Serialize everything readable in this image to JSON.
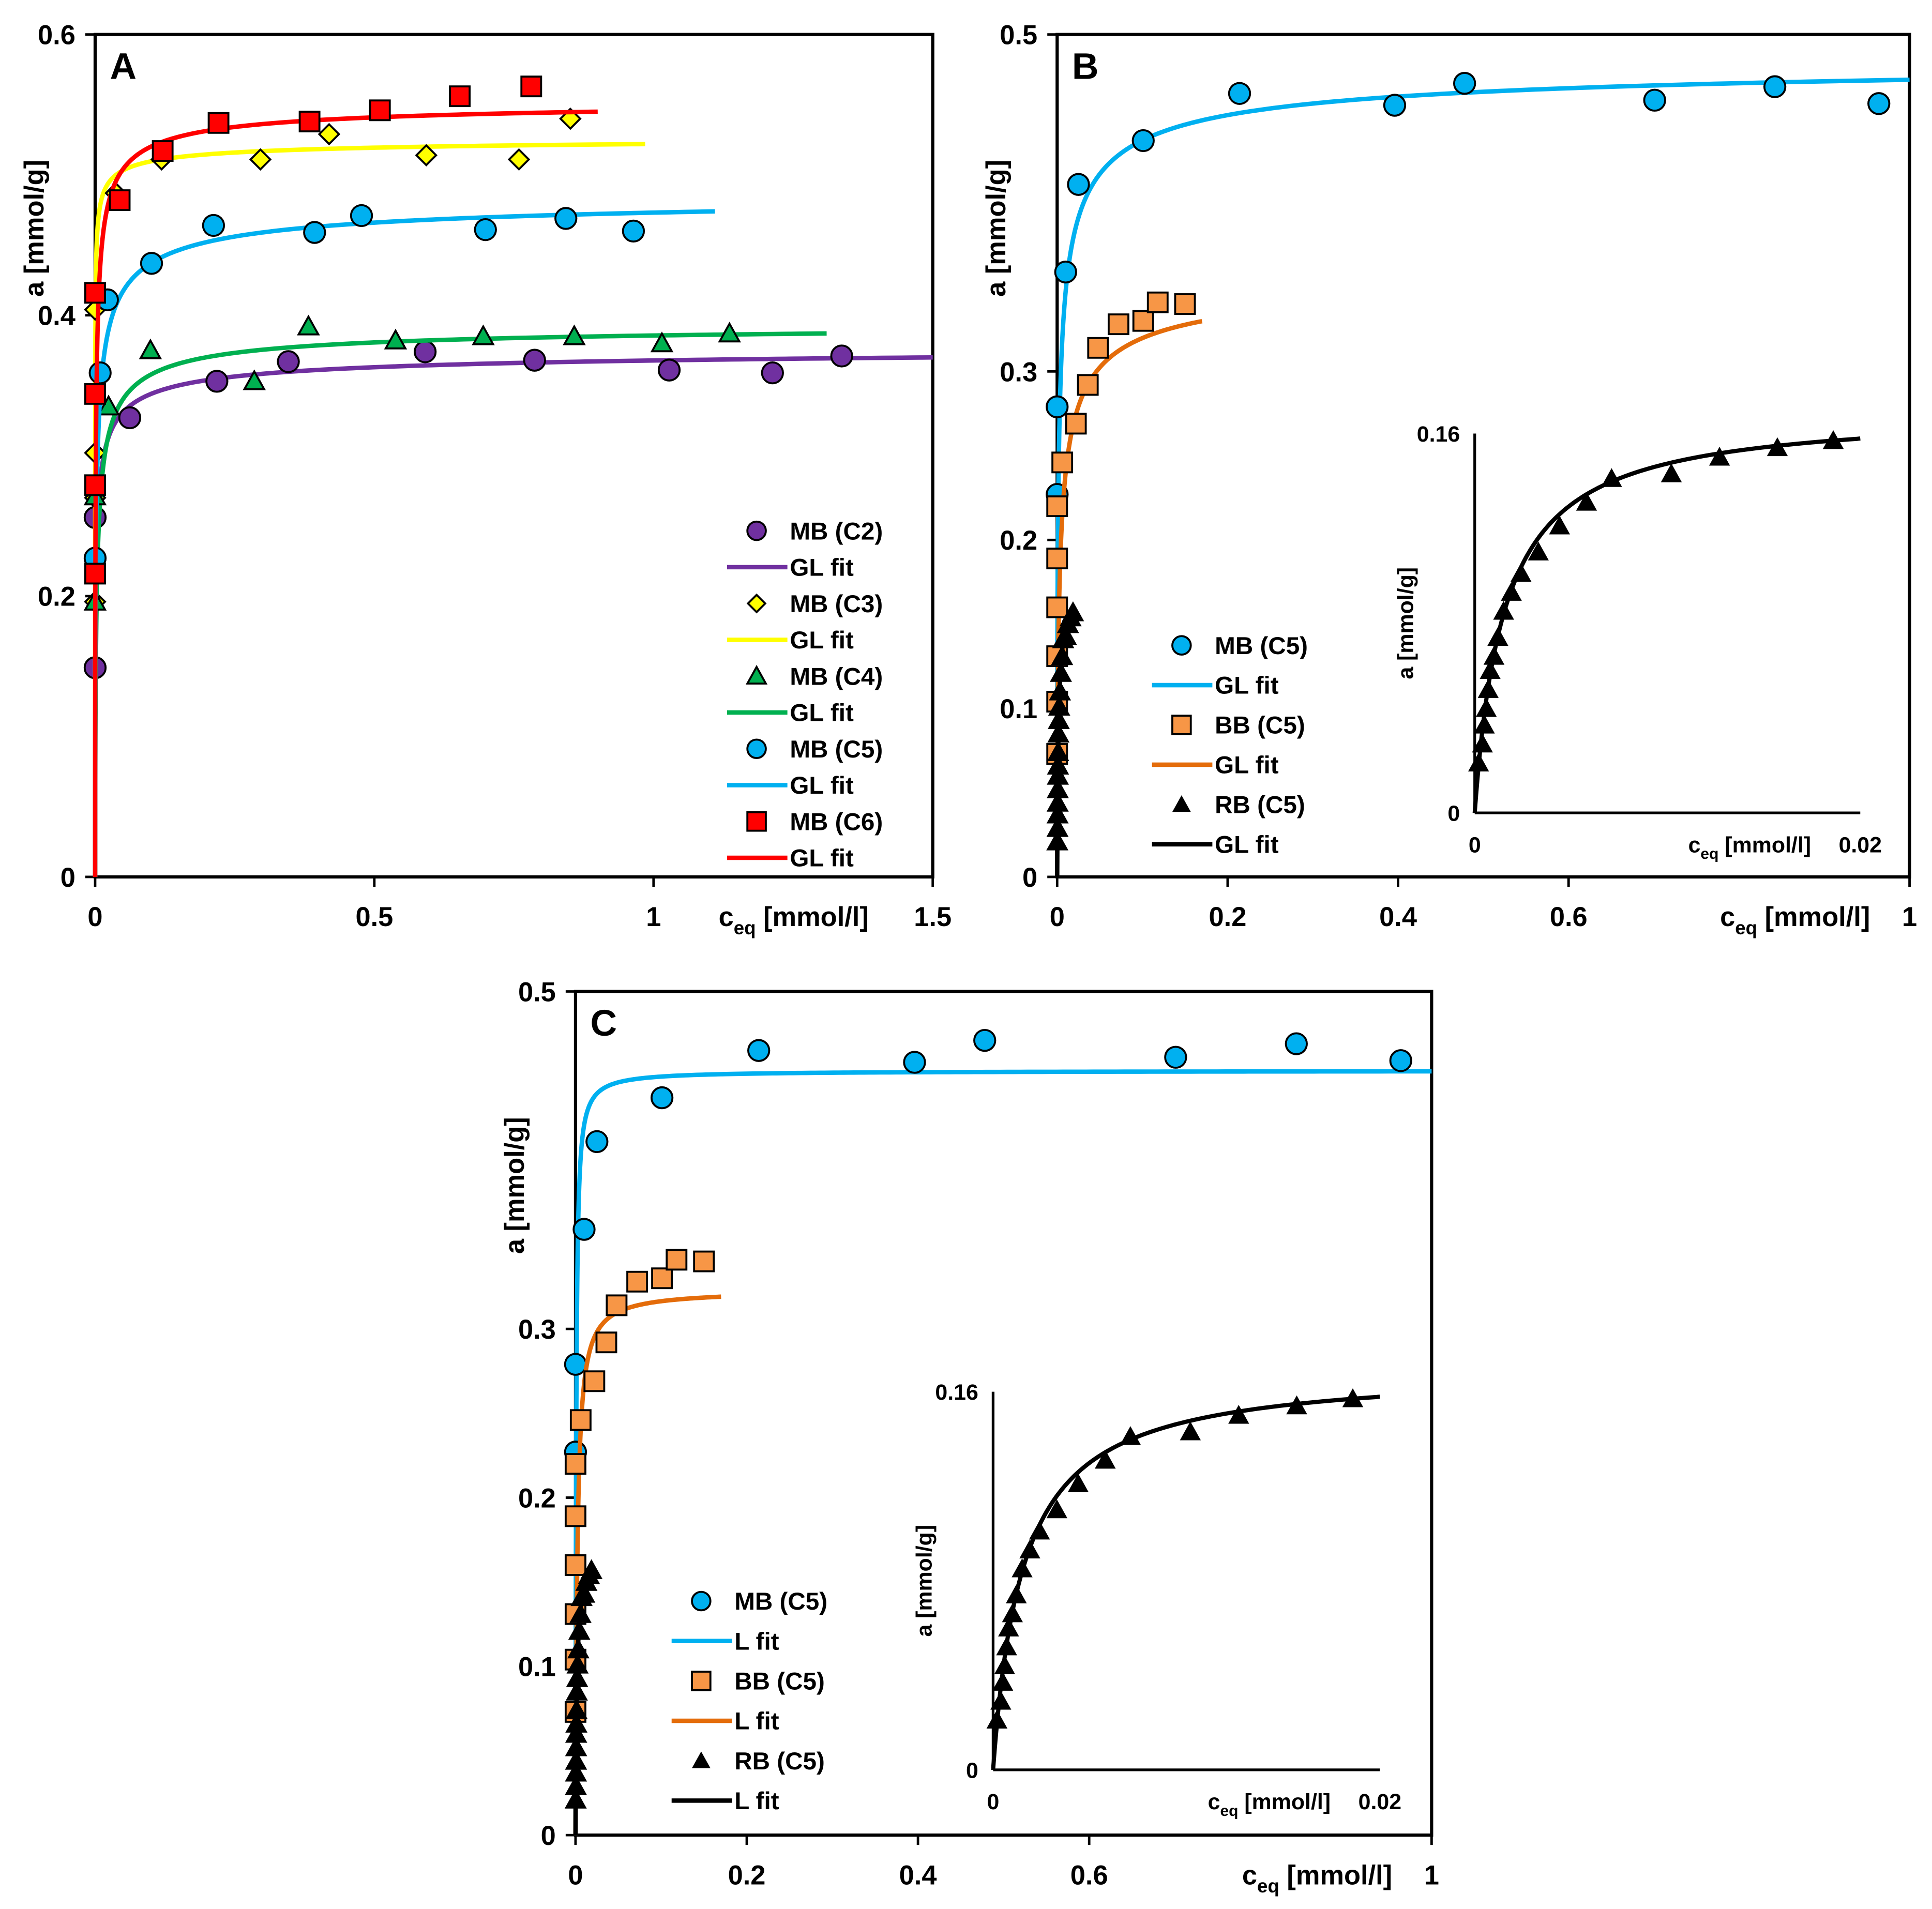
{
  "chart_data": [
    {
      "id": "A",
      "type": "scatter",
      "panel_label": "A",
      "xlabel_main": "c",
      "xlabel_sub": "eq",
      "xlabel_unit": " [mmol/l]",
      "ylabel": "a [mmol/g]",
      "xlim": [
        0,
        1.5
      ],
      "ylim": [
        0,
        0.6
      ],
      "xticks": [
        0,
        0.5,
        1,
        1.5
      ],
      "xtick_labels": [
        "0",
        "0.5",
        "1",
        "1.5"
      ],
      "yticks": [
        0,
        0.2,
        0.4,
        0.6
      ],
      "ytick_labels": [
        "0",
        "0.2",
        "0.4",
        "0.6"
      ],
      "legend_placement": "bottom-right",
      "series": [
        {
          "name": "MB (C2)",
          "marker": "circle",
          "color": "#7030A0",
          "points": [
            [
              0,
              0.149
            ],
            [
              0,
              0.256
            ],
            [
              0.062,
              0.327
            ],
            [
              0.218,
              0.353
            ],
            [
              0.346,
              0.367
            ],
            [
              0.591,
              0.374
            ],
            [
              0.787,
              0.368
            ],
            [
              1.028,
              0.361
            ],
            [
              1.213,
              0.359
            ],
            [
              1.337,
              0.371
            ]
          ],
          "fit": {
            "label": "GL fit",
            "am": 0.38,
            "K": 913,
            "n": 0.5,
            "xmax": 1.5
          }
        },
        {
          "name": "MB (C3)",
          "marker": "diamond",
          "color": "#FFFF00",
          "points": [
            [
              0,
              0.196
            ],
            [
              0,
              0.27
            ],
            [
              0,
              0.302
            ],
            [
              0,
              0.404
            ],
            [
              0.037,
              0.487
            ],
            [
              0.119,
              0.511
            ],
            [
              0.296,
              0.511
            ],
            [
              0.419,
              0.529
            ],
            [
              0.593,
              0.514
            ],
            [
              0.759,
              0.511
            ],
            [
              0.851,
              0.54
            ]
          ],
          "fit": {
            "label": "GL fit",
            "am": 0.53,
            "K": 23500,
            "n": 0.415,
            "xmax": 0.985
          }
        },
        {
          "name": "MB (C4)",
          "marker": "triangle",
          "color": "#00B050",
          "points": [
            [
              0,
              0.196
            ],
            [
              0,
              0.271
            ],
            [
              0.024,
              0.335
            ],
            [
              0.099,
              0.375
            ],
            [
              0.285,
              0.353
            ],
            [
              0.382,
              0.392
            ],
            [
              0.538,
              0.382
            ],
            [
              0.695,
              0.385
            ],
            [
              0.858,
              0.385
            ],
            [
              1.015,
              0.38
            ],
            [
              1.136,
              0.387
            ]
          ],
          "fit": {
            "label": "GL fit",
            "am": 0.395,
            "K": 364,
            "n": 0.63,
            "xmax": 1.31
          }
        },
        {
          "name": "MB (C5)",
          "marker": "circle",
          "color": "#00B0F0",
          "points": [
            [
              0,
              0.227
            ],
            [
              0.009,
              0.359
            ],
            [
              0.022,
              0.411
            ],
            [
              0.101,
              0.437
            ],
            [
              0.212,
              0.464
            ],
            [
              0.393,
              0.459
            ],
            [
              0.477,
              0.471
            ],
            [
              0.699,
              0.461
            ],
            [
              0.843,
              0.469
            ],
            [
              0.964,
              0.46
            ]
          ],
          "fit": {
            "label": "GL fit",
            "am": 0.49,
            "K": 539,
            "n": 0.53,
            "xmax": 1.11
          }
        },
        {
          "name": "MB (C6)",
          "marker": "square",
          "color": "#FF0000",
          "points": [
            [
              0,
              0.216
            ],
            [
              0,
              0.279
            ],
            [
              0,
              0.344
            ],
            [
              0,
              0.416
            ],
            [
              0.044,
              0.482
            ],
            [
              0.121,
              0.517
            ],
            [
              0.221,
              0.537
            ],
            [
              0.384,
              0.538
            ],
            [
              0.51,
              0.546
            ],
            [
              0.653,
              0.556
            ],
            [
              0.781,
              0.563
            ]
          ],
          "fit": {
            "label": "GL fit",
            "am": 0.555,
            "K": 976,
            "n": 0.59,
            "xmax": 0.9
          }
        }
      ]
    },
    {
      "id": "B",
      "type": "scatter",
      "panel_label": "B",
      "xlabel_main": "c",
      "xlabel_sub": "eq",
      "xlabel_unit": " [mmol/l]",
      "ylabel": "a [mmol/g]",
      "xlim": [
        0,
        1
      ],
      "ylim": [
        0,
        0.5
      ],
      "xticks": [
        0,
        0.2,
        0.4,
        0.6,
        1
      ],
      "xtick_labels": [
        "0",
        "0.2",
        "0.4",
        "0.6",
        "1"
      ],
      "yticks": [
        0,
        0.1,
        0.2,
        0.3,
        0.5
      ],
      "ytick_labels": [
        "0",
        "0.1",
        "0.2",
        "0.3",
        "0.5"
      ],
      "legend_placement": "bottom-left",
      "series": [
        {
          "name": "MB (C5)",
          "marker": "circle",
          "color": "#00B0F0",
          "points": [
            [
              0,
              0.227
            ],
            [
              0,
              0.279
            ],
            [
              0.01,
              0.359
            ],
            [
              0.025,
              0.411
            ],
            [
              0.101,
              0.437
            ],
            [
              0.214,
              0.465
            ],
            [
              0.396,
              0.458
            ],
            [
              0.478,
              0.471
            ],
            [
              0.701,
              0.461
            ],
            [
              0.842,
              0.469
            ],
            [
              0.964,
              0.459
            ]
          ],
          "fit": {
            "label": "GL fit",
            "am": 0.49,
            "K": 539,
            "n": 0.53,
            "xmax": 1.0
          }
        },
        {
          "name": "BB (C5)",
          "marker": "square",
          "color": "#F79646",
          "line_color": "#E46C0A",
          "points": [
            [
              0,
              0.073
            ],
            [
              0,
              0.104
            ],
            [
              0,
              0.131
            ],
            [
              0,
              0.16
            ],
            [
              0,
              0.189
            ],
            [
              0,
              0.22
            ],
            [
              0.006,
              0.246
            ],
            [
              0.022,
              0.269
            ],
            [
              0.036,
              0.292
            ],
            [
              0.048,
              0.314
            ],
            [
              0.072,
              0.328
            ],
            [
              0.101,
              0.33
            ],
            [
              0.118,
              0.341
            ],
            [
              0.15,
              0.34
            ]
          ],
          "fit": {
            "label": "GL fit",
            "am": 0.36,
            "K": 317,
            "n": 0.6,
            "xmax": 0.17
          }
        },
        {
          "name": "RB (C5)",
          "marker": "triangle-solid",
          "color": "#000000",
          "points": [
            [
              0.0002,
              0.021
            ],
            [
              0.0004,
              0.029
            ],
            [
              0.0005,
              0.037
            ],
            [
              0.0006,
              0.044
            ],
            [
              0.0007,
              0.052
            ],
            [
              0.0008,
              0.06
            ],
            [
              0.001,
              0.066
            ],
            [
              0.0012,
              0.074
            ],
            [
              0.0015,
              0.085
            ],
            [
              0.0019,
              0.093
            ],
            [
              0.0024,
              0.101
            ],
            [
              0.0033,
              0.11
            ],
            [
              0.0044,
              0.121
            ],
            [
              0.0058,
              0.131
            ],
            [
              0.0071,
              0.141
            ],
            [
              0.0102,
              0.143
            ],
            [
              0.0127,
              0.15
            ],
            [
              0.0157,
              0.154
            ],
            [
              0.0186,
              0.157
            ]
          ],
          "fit": {
            "label": "GL fit",
            "am": 0.17,
            "K": 650,
            "n": 1,
            "xmax": 0.0201
          }
        }
      ],
      "inset": {
        "series_index": 2,
        "xlim": [
          0,
          0.02
        ],
        "ylim": [
          0,
          0.16
        ],
        "xticks": [
          0,
          0.02
        ],
        "xtick_labels": [
          "0",
          "0.02"
        ],
        "yticks": [
          0,
          0.16
        ],
        "ytick_labels": [
          "0",
          "0.16"
        ],
        "xlabel_main": "c",
        "xlabel_sub": "eq",
        "xlabel_unit": " [mmol/l]",
        "ylabel": "a [mmol/g]"
      }
    },
    {
      "id": "C",
      "type": "scatter",
      "panel_label": "C",
      "xlabel_main": "c",
      "xlabel_sub": "eq",
      "xlabel_unit": " [mmol/l]",
      "ylabel": "a [mmol/g]",
      "xlim": [
        0,
        1
      ],
      "ylim": [
        0,
        0.5
      ],
      "xticks": [
        0,
        0.2,
        0.4,
        0.6,
        1
      ],
      "xtick_labels": [
        "0",
        "0.2",
        "0.4",
        "0.6",
        "1"
      ],
      "yticks": [
        0,
        0.1,
        0.2,
        0.3,
        0.5
      ],
      "ytick_labels": [
        "0",
        "0.1",
        "0.2",
        "0.3",
        "0.5"
      ],
      "legend_placement": "bottom-left",
      "series": [
        {
          "name": "MB (C5)",
          "marker": "circle",
          "color": "#00B0F0",
          "points": [
            [
              0,
              0.227
            ],
            [
              0,
              0.279
            ],
            [
              0.01,
              0.359
            ],
            [
              0.025,
              0.411
            ],
            [
              0.101,
              0.437
            ],
            [
              0.214,
              0.465
            ],
            [
              0.396,
              0.458
            ],
            [
              0.478,
              0.471
            ],
            [
              0.701,
              0.461
            ],
            [
              0.842,
              0.469
            ],
            [
              0.964,
              0.459
            ]
          ],
          "fit": {
            "label": "L fit",
            "am": 0.453,
            "K": 1300,
            "n": 1,
            "xmax": 1.0
          }
        },
        {
          "name": "BB (C5)",
          "marker": "square",
          "color": "#F79646",
          "line_color": "#E46C0A",
          "points": [
            [
              0,
              0.073
            ],
            [
              0,
              0.104
            ],
            [
              0,
              0.131
            ],
            [
              0,
              0.16
            ],
            [
              0,
              0.189
            ],
            [
              0,
              0.22
            ],
            [
              0.006,
              0.246
            ],
            [
              0.022,
              0.269
            ],
            [
              0.036,
              0.292
            ],
            [
              0.048,
              0.314
            ],
            [
              0.072,
              0.328
            ],
            [
              0.101,
              0.33
            ],
            [
              0.118,
              0.341
            ],
            [
              0.15,
              0.34
            ]
          ],
          "fit": {
            "label": "L fit",
            "am": 0.323,
            "K": 480,
            "n": 1,
            "xmax": 0.17
          }
        },
        {
          "name": "RB (C5)",
          "marker": "triangle-solid",
          "color": "#000000",
          "points": [
            [
              0.0002,
              0.021
            ],
            [
              0.0004,
              0.029
            ],
            [
              0.0005,
              0.037
            ],
            [
              0.0006,
              0.044
            ],
            [
              0.0007,
              0.052
            ],
            [
              0.0008,
              0.06
            ],
            [
              0.001,
              0.066
            ],
            [
              0.0012,
              0.074
            ],
            [
              0.0015,
              0.085
            ],
            [
              0.0019,
              0.093
            ],
            [
              0.0024,
              0.101
            ],
            [
              0.0033,
              0.11
            ],
            [
              0.0044,
              0.121
            ],
            [
              0.0058,
              0.131
            ],
            [
              0.0071,
              0.141
            ],
            [
              0.0102,
              0.143
            ],
            [
              0.0127,
              0.15
            ],
            [
              0.0157,
              0.154
            ],
            [
              0.0186,
              0.157
            ]
          ],
          "fit": {
            "label": "L fit",
            "am": 0.17,
            "K": 650,
            "n": 1,
            "xmax": 0.0201
          }
        }
      ],
      "inset": {
        "series_index": 2,
        "xlim": [
          0,
          0.02
        ],
        "ylim": [
          0,
          0.16
        ],
        "xticks": [
          0,
          0.02
        ],
        "xtick_labels": [
          "0",
          "0.02"
        ],
        "yticks": [
          0,
          0.16
        ],
        "ytick_labels": [
          "0",
          "0.16"
        ],
        "xlabel_main": "c",
        "xlabel_sub": "eq",
        "xlabel_unit": " [mmol/l]",
        "ylabel": "a [mmol/g]"
      }
    }
  ]
}
